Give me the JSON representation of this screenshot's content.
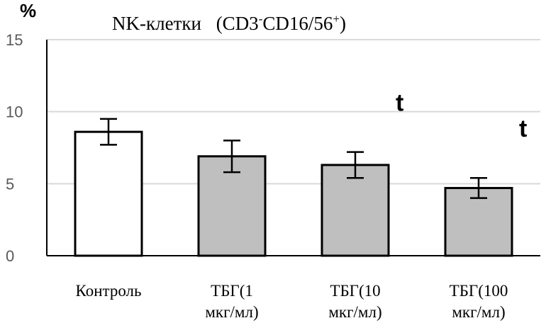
{
  "chart_data": {
    "type": "bar",
    "title": "NK-клетки",
    "title_markers": {
      "open": "(CD3",
      "sup1": "-",
      "mid": "CD16/56",
      "sup2": "+",
      "close": ")"
    },
    "ylabel": "%",
    "ylim": [
      0,
      15
    ],
    "yticks": [
      "0",
      "5",
      "10",
      "15"
    ],
    "grid": true,
    "categories": [
      [
        "Контроль"
      ],
      [
        "ТБГ(1",
        "мкг/мл)"
      ],
      [
        "ТБГ(10",
        "мкг/мл)"
      ],
      [
        "ТБГ(100",
        "мкг/мл)"
      ]
    ],
    "values": [
      8.6,
      6.9,
      6.3,
      4.7
    ],
    "errors": [
      0.9,
      1.1,
      0.9,
      0.7
    ],
    "fills": [
      "#ffffff",
      "#bfbfbf",
      "#bfbfbf",
      "#bfbfbf"
    ],
    "significance": [
      "",
      "",
      "t",
      "t"
    ]
  }
}
